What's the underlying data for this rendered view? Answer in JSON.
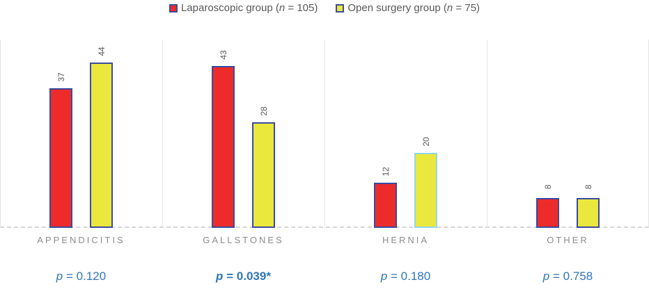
{
  "chart_data": {
    "type": "bar",
    "title": "",
    "xlabel": "",
    "ylabel": "",
    "ylim": [
      0,
      50
    ],
    "grid": false,
    "legend_position": "top-center",
    "categories": [
      "APPENDICITIS",
      "GALLSTONES",
      "HERNIA",
      "OTHER"
    ],
    "series": [
      {
        "name": "Laparoscopic group (n = 105)",
        "values": [
          37,
          43,
          12,
          8
        ],
        "fill": "#EE2B2B",
        "stroke": "#3A4A9F"
      },
      {
        "name": "Open surgery group (n = 75)",
        "values": [
          44,
          28,
          20,
          8
        ],
        "fill": "#EAE83C",
        "stroke": "#3A4A9F",
        "stroke_overrides": {
          "2": "#90D7E8"
        }
      }
    ],
    "p_annotations": [
      {
        "symbol": "p",
        "rest": " = 0.120",
        "bold": false
      },
      {
        "symbol": "p",
        "rest": " = 0.039*",
        "bold": true
      },
      {
        "symbol": "p",
        "rest": " = 0.180",
        "bold": false
      },
      {
        "symbol": "p",
        "rest": " = 0.758",
        "bold": false
      }
    ]
  },
  "legend": {
    "items": [
      {
        "pre": "Laparoscopic group (",
        "n": "n",
        "post": " = 105)"
      },
      {
        "pre": "Open surgery group (",
        "n": "n",
        "post": " = 75)"
      }
    ]
  },
  "colors": {
    "laparoscopic_fill": "#EE2B2B",
    "open_surgery_fill": "#EAE83C",
    "bar_stroke": "#3A4A9F",
    "hernia_open_stroke": "#90D7E8",
    "p_value_blue": "#2E75B6",
    "value_label_gray": "#595959",
    "category_gray": "#8C8C8C",
    "gridline_gray": "#E4E4E4",
    "baseline_gray": "#D6D6D6"
  }
}
